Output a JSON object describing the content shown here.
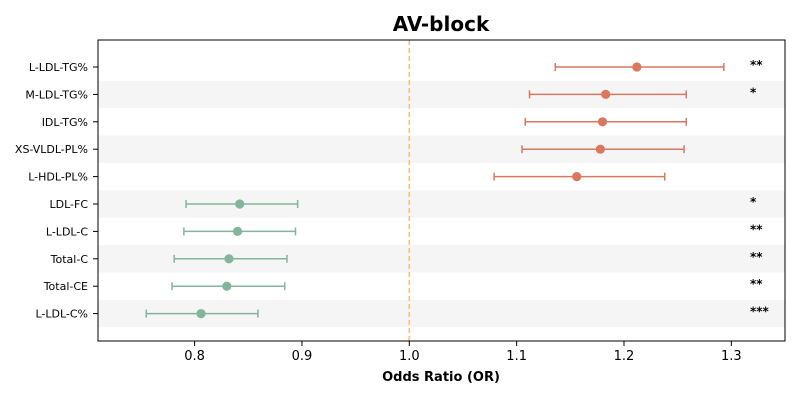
{
  "chart_data": {
    "type": "forest",
    "title": "AV-block",
    "xlabel": "Odds Ratio (OR)",
    "xlim": [
      0.71,
      1.35
    ],
    "xticks": [
      "0.8",
      "0.9",
      "1.0",
      "1.1",
      "1.2",
      "1.3"
    ],
    "reference_line": 1.0,
    "colors": {
      "positive": "#d9775f",
      "negative": "#83b59b",
      "reference": "#f2c27e",
      "band": "#f5f5f5"
    },
    "rows": [
      {
        "label": "L-LDL-TG%",
        "or": 1.212,
        "lo": 1.136,
        "hi": 1.293,
        "sig": "**"
      },
      {
        "label": "M-LDL-TG%",
        "or": 1.183,
        "lo": 1.112,
        "hi": 1.258,
        "sig": "*"
      },
      {
        "label": "IDL-TG%",
        "or": 1.18,
        "lo": 1.108,
        "hi": 1.258,
        "sig": ""
      },
      {
        "label": "XS-VLDL-PL%",
        "or": 1.178,
        "lo": 1.105,
        "hi": 1.256,
        "sig": ""
      },
      {
        "label": "L-HDL-PL%",
        "or": 1.156,
        "lo": 1.079,
        "hi": 1.238,
        "sig": ""
      },
      {
        "label": "LDL-FC",
        "or": 0.842,
        "lo": 0.792,
        "hi": 0.896,
        "sig": "*"
      },
      {
        "label": "L-LDL-C",
        "or": 0.84,
        "lo": 0.79,
        "hi": 0.894,
        "sig": "**"
      },
      {
        "label": "Total-C",
        "or": 0.832,
        "lo": 0.781,
        "hi": 0.886,
        "sig": "**"
      },
      {
        "label": "Total-CE",
        "or": 0.83,
        "lo": 0.779,
        "hi": 0.884,
        "sig": "**"
      },
      {
        "label": "L-LDL-C%",
        "or": 0.806,
        "lo": 0.755,
        "hi": 0.859,
        "sig": "***"
      }
    ]
  }
}
